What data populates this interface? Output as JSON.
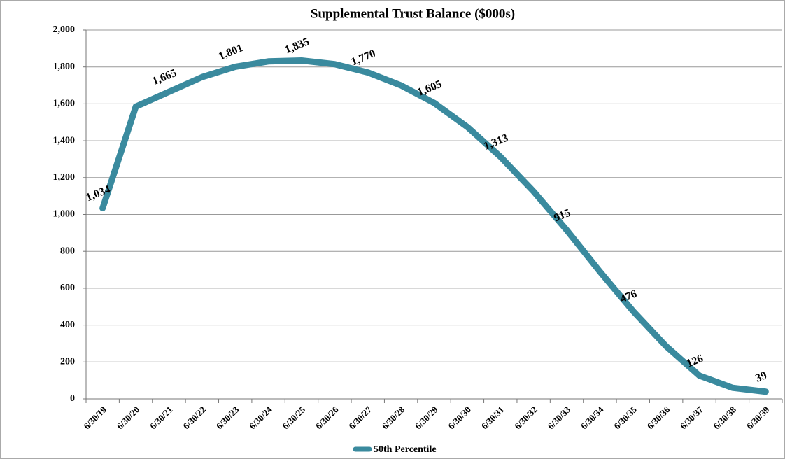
{
  "chart_data": {
    "type": "line",
    "title": "Supplemental Trust Balance ($000s)",
    "categories": [
      "6/30/19",
      "6/30/20",
      "6/30/21",
      "6/30/22",
      "6/30/23",
      "6/30/24",
      "6/30/25",
      "6/30/26",
      "6/30/27",
      "6/30/28",
      "6/30/29",
      "6/30/30",
      "6/30/31",
      "6/30/32",
      "6/30/33",
      "6/30/34",
      "6/30/35",
      "6/30/36",
      "6/30/37",
      "6/30/38",
      "6/30/39"
    ],
    "series": [
      {
        "name": "50th Percentile",
        "color": "#3a8a9e",
        "values": [
          1034,
          1585,
          1665,
          1745,
          1801,
          1830,
          1835,
          1815,
          1770,
          1700,
          1605,
          1475,
          1313,
          1125,
          915,
          690,
          476,
          285,
          126,
          60,
          39
        ],
        "value_labels": [
          "1,034",
          null,
          "1,665",
          null,
          "1,801",
          null,
          "1,835",
          null,
          "1,770",
          null,
          "1,605",
          null,
          "1,313",
          null,
          "915",
          null,
          "476",
          null,
          "126",
          null,
          "39"
        ]
      }
    ],
    "ylim": [
      0,
      2000
    ],
    "yticks": [
      0,
      200,
      400,
      600,
      800,
      {
        "value": 1000,
        "label": "1,000"
      },
      {
        "value": 1200,
        "label": "1,200"
      },
      {
        "value": 1400,
        "label": "1,400"
      },
      {
        "value": 1600,
        "label": "1,600"
      },
      {
        "value": 1800,
        "label": "1,800"
      },
      {
        "value": 2000,
        "label": "2,000"
      }
    ],
    "grid": true,
    "legend": "bottom"
  }
}
